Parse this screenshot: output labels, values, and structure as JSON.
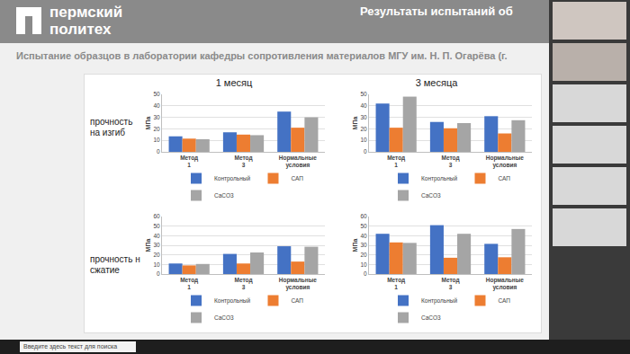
{
  "header": {
    "brand": [
      "пермский",
      "политех"
    ],
    "title": "Результаты испытаний об"
  },
  "subtitle": "Испытание образцов в лаборатории кафедры сопротивления материалов МГУ им. Н. П. Огарёва (г.",
  "column_titles": [
    "1 месяц",
    "3 месяца"
  ],
  "row_titles": [
    "прочность на изгиб",
    "прочность н сжатие"
  ],
  "taskbar": {
    "search": "Введите здесь текст для поиска"
  },
  "chart_data": [
    {
      "type": "bar",
      "categories": [
        "Метод 1",
        "Метод 3",
        "Нормальные условия"
      ],
      "ylabel": "МПа",
      "series": [
        {
          "name": "Контрольный",
          "color": "#4472c4",
          "values": [
            13.5,
            17,
            35
          ]
        },
        {
          "name": "САП",
          "color": "#ed7d31",
          "values": [
            11.5,
            15,
            21
          ]
        },
        {
          "name": "CaCO3",
          "color": "#a5a5a5",
          "values": [
            11,
            14.5,
            30
          ]
        }
      ],
      "ylim": [
        0,
        50
      ],
      "yticks": [
        0,
        10,
        20,
        30,
        40,
        50
      ],
      "grid": true,
      "legend": "bottom"
    },
    {
      "type": "bar",
      "categories": [
        "Метод 1",
        "Метод 3",
        "Нормальные условия"
      ],
      "ylabel": "МПа",
      "series": [
        {
          "name": "Контрольный",
          "color": "#4472c4",
          "values": [
            42,
            26,
            31
          ]
        },
        {
          "name": "САП",
          "color": "#ed7d31",
          "values": [
            21,
            20.5,
            16
          ]
        },
        {
          "name": "CaCO3",
          "color": "#a5a5a5",
          "values": [
            48,
            25,
            27.5
          ]
        }
      ],
      "ylim": [
        0,
        50
      ],
      "yticks": [
        0,
        10,
        20,
        30,
        40,
        50
      ],
      "grid": true,
      "legend": "bottom"
    },
    {
      "type": "bar",
      "categories": [
        "Метод 1",
        "Метод 3",
        "Нормальные условия"
      ],
      "ylabel": "МПа",
      "series": [
        {
          "name": "Контрольный",
          "color": "#4472c4",
          "values": [
            11,
            21,
            29
          ]
        },
        {
          "name": "САП",
          "color": "#ed7d31",
          "values": [
            9,
            11,
            13
          ]
        },
        {
          "name": "CaCO3",
          "color": "#a5a5a5",
          "values": [
            10.5,
            22.5,
            28.5
          ]
        }
      ],
      "ylim": [
        0,
        60
      ],
      "yticks": [
        0,
        10,
        20,
        30,
        40,
        50,
        60
      ],
      "grid": true,
      "legend": "bottom"
    },
    {
      "type": "bar",
      "categories": [
        "Метод 1",
        "Метод 3",
        "Нормальные условия"
      ],
      "ylabel": "МПа",
      "series": [
        {
          "name": "Контрольный",
          "color": "#4472c4",
          "values": [
            42,
            51,
            31.5
          ]
        },
        {
          "name": "САП",
          "color": "#ed7d31",
          "values": [
            33,
            17,
            17.5
          ]
        },
        {
          "name": "CaCO3",
          "color": "#a5a5a5",
          "values": [
            32.5,
            42,
            47
          ]
        }
      ],
      "ylim": [
        0,
        60
      ],
      "yticks": [
        0,
        10,
        20,
        30,
        40,
        50,
        60
      ],
      "grid": true,
      "legend": "bottom"
    }
  ]
}
